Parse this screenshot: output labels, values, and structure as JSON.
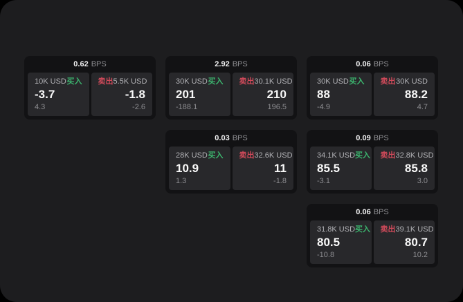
{
  "page": {
    "background": "#1d1d1f",
    "outside_background": "#000000"
  },
  "labels": {
    "bps_unit": "BPS",
    "buy": "买入",
    "sell": "卖出"
  },
  "colors": {
    "buy": "#3cb46e",
    "sell": "#cf4a5a"
  },
  "cards": [
    {
      "bps": "0.62",
      "grid": {
        "col": 1,
        "row": 1
      },
      "buy": {
        "usd": "10K USD",
        "price": "-3.7",
        "delta": "4.3"
      },
      "sell": {
        "usd": "5.5K USD",
        "price": "-1.8",
        "delta": "-2.6"
      }
    },
    {
      "bps": "2.92",
      "grid": {
        "col": 2,
        "row": 1
      },
      "buy": {
        "usd": "30K USD",
        "price": "201",
        "delta": "-188.1"
      },
      "sell": {
        "usd": "30.1K USD",
        "price": "210",
        "delta": "196.5"
      }
    },
    {
      "bps": "0.06",
      "grid": {
        "col": 3,
        "row": 1
      },
      "buy": {
        "usd": "30K USD",
        "price": "88",
        "delta": "-4.9"
      },
      "sell": {
        "usd": "30K USD",
        "price": "88.2",
        "delta": "4.7"
      }
    },
    {
      "bps": "0.03",
      "grid": {
        "col": 2,
        "row": 2
      },
      "buy": {
        "usd": "28K USD",
        "price": "10.9",
        "delta": "1.3"
      },
      "sell": {
        "usd": "32.6K USD",
        "price": "11",
        "delta": "-1.8"
      }
    },
    {
      "bps": "0.09",
      "grid": {
        "col": 3,
        "row": 2
      },
      "buy": {
        "usd": "34.1K USD",
        "price": "85.5",
        "delta": "-3.1"
      },
      "sell": {
        "usd": "32.8K USD",
        "price": "85.8",
        "delta": "3.0"
      }
    },
    {
      "bps": "0.06",
      "grid": {
        "col": 3,
        "row": 3
      },
      "buy": {
        "usd": "31.8K USD",
        "price": "80.5",
        "delta": "-10.8"
      },
      "sell": {
        "usd": "39.1K USD",
        "price": "80.7",
        "delta": "10.2"
      }
    }
  ]
}
